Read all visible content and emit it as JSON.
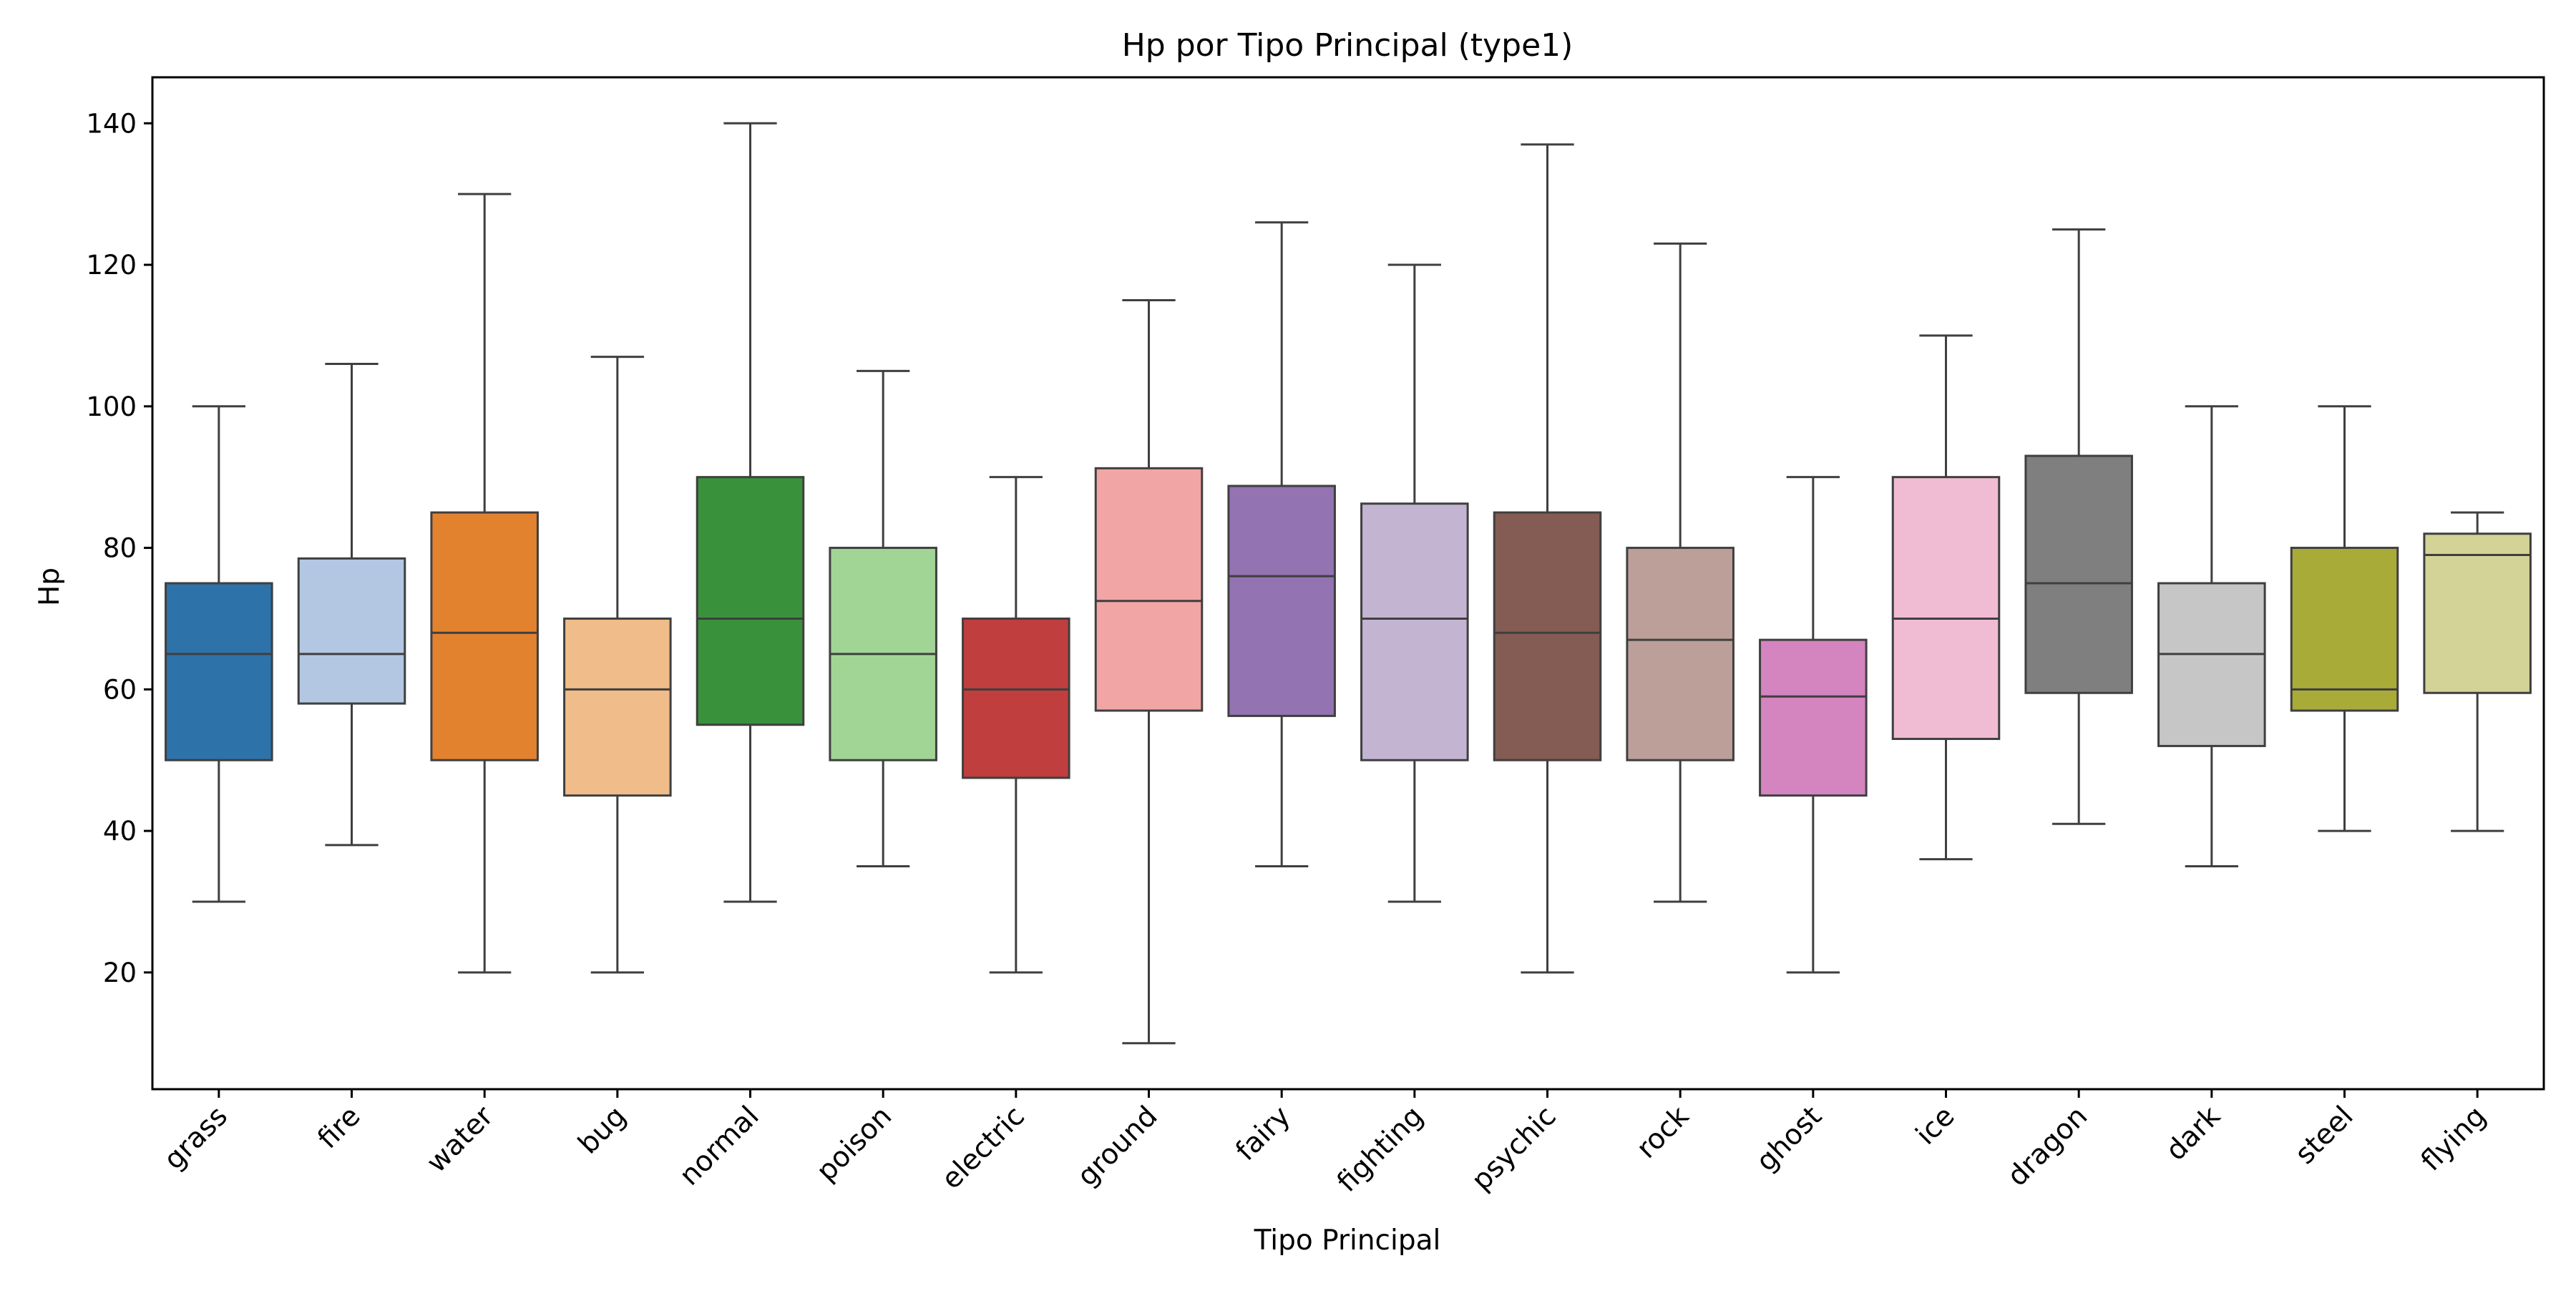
{
  "chart_data": {
    "type": "box",
    "title": "Hp por Tipo Principal (type1)",
    "xlabel": "Tipo Principal",
    "ylabel": "Hp",
    "ylim": [
      3.5,
      146.5
    ],
    "yticks": [
      20,
      40,
      60,
      80,
      100,
      120,
      140
    ],
    "grid": false,
    "categories": [
      "grass",
      "fire",
      "water",
      "bug",
      "normal",
      "poison",
      "electric",
      "ground",
      "fairy",
      "fighting",
      "psychic",
      "rock",
      "ghost",
      "ice",
      "dragon",
      "dark",
      "steel",
      "flying"
    ],
    "boxes": [
      {
        "whisker_low": 30,
        "q1": 50,
        "median": 65,
        "q3": 75,
        "whisker_high": 100,
        "color": "#2e72aa"
      },
      {
        "whisker_low": 38,
        "q1": 58,
        "median": 65,
        "q3": 78.5,
        "whisker_high": 106,
        "color": "#b3c7e2"
      },
      {
        "whisker_low": 20,
        "q1": 50,
        "median": 68,
        "q3": 85,
        "whisker_high": 130,
        "color": "#e2822f"
      },
      {
        "whisker_low": 20,
        "q1": 45,
        "median": 60,
        "q3": 70,
        "whisker_high": 107,
        "color": "#f0bc89"
      },
      {
        "whisker_low": 30,
        "q1": 55,
        "median": 70,
        "q3": 90,
        "whisker_high": 140,
        "color": "#3a913c"
      },
      {
        "whisker_low": 35,
        "q1": 50,
        "median": 65,
        "q3": 80,
        "whisker_high": 105,
        "color": "#a1d595"
      },
      {
        "whisker_low": 20,
        "q1": 47.5,
        "median": 60,
        "q3": 70,
        "whisker_high": 90,
        "color": "#c03e3e"
      },
      {
        "whisker_low": 10,
        "q1": 57,
        "median": 72.5,
        "q3": 91.25,
        "whisker_high": 115,
        "color": "#f2a5a5"
      },
      {
        "whisker_low": 35,
        "q1": 56.25,
        "median": 76,
        "q3": 88.75,
        "whisker_high": 126,
        "color": "#9373b1"
      },
      {
        "whisker_low": 30,
        "q1": 50,
        "median": 70,
        "q3": 86.25,
        "whisker_high": 120,
        "color": "#c3b5d2"
      },
      {
        "whisker_low": 20,
        "q1": 50,
        "median": 68,
        "q3": 85,
        "whisker_high": 137,
        "color": "#845c54"
      },
      {
        "whisker_low": 30,
        "q1": 50,
        "median": 67,
        "q3": 80,
        "whisker_high": 123,
        "color": "#bd9f9a"
      },
      {
        "whisker_low": 20,
        "q1": 45,
        "median": 59,
        "q3": 67,
        "whisker_high": 90,
        "color": "#d484bf"
      },
      {
        "whisker_low": 36,
        "q1": 53,
        "median": 70,
        "q3": 90,
        "whisker_high": 110,
        "color": "#f0bcd3"
      },
      {
        "whisker_low": 41,
        "q1": 59.5,
        "median": 75,
        "q3": 93,
        "whisker_high": 125,
        "color": "#7f7f7f"
      },
      {
        "whisker_low": 35,
        "q1": 52,
        "median": 65,
        "q3": 75,
        "whisker_high": 100,
        "color": "#c6c6c6"
      },
      {
        "whisker_low": 40,
        "q1": 57,
        "median": 60,
        "q3": 80,
        "whisker_high": 100,
        "color": "#a9ab38"
      },
      {
        "whisker_low": 40,
        "q1": 59.5,
        "median": 79,
        "q3": 82,
        "whisker_high": 85,
        "color": "#d3d397"
      }
    ]
  }
}
